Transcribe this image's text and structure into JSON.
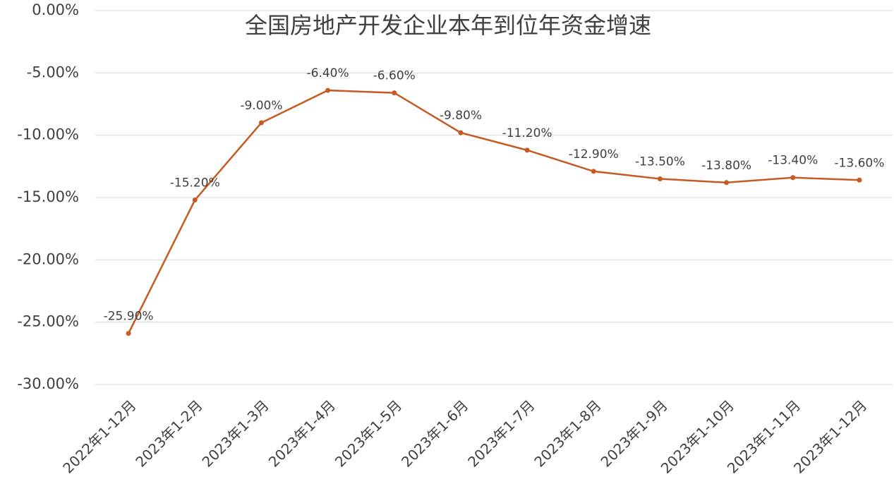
{
  "chart_data": {
    "type": "line",
    "title": "全国房地产开发企业本年到位年资金增速",
    "categories": [
      "2022年1-12月",
      "2023年1-2月",
      "2023年1-3月",
      "2023年1-4月",
      "2023年1-5月",
      "2023年1-6月",
      "2023年1-7月",
      "2023年1-8月",
      "2023年1-9月",
      "2023年1-10月",
      "2023年1-11月",
      "2023年1-12月"
    ],
    "values": [
      -25.9,
      -15.2,
      -9.0,
      -6.4,
      -6.6,
      -9.8,
      -11.2,
      -12.9,
      -13.5,
      -13.8,
      -13.4,
      -13.6
    ],
    "value_labels": [
      "-25.90%",
      "-15.20%",
      "-9.00%",
      "-6.40%",
      "-6.60%",
      "-9.80%",
      "-11.20%",
      "-12.90%",
      "-13.50%",
      "-13.80%",
      "-13.40%",
      "-13.60%"
    ],
    "color": "#c55a22",
    "ylim": [
      -30,
      0
    ],
    "yticks": [
      {
        "value": 0,
        "label": "0.00%"
      },
      {
        "value": -5,
        "label": "-5.00%"
      },
      {
        "value": -10,
        "label": "-10.00%"
      },
      {
        "value": -15,
        "label": "-15.00%"
      },
      {
        "value": -20,
        "label": "-20.00%"
      },
      {
        "value": -25,
        "label": "-25.00%"
      },
      {
        "value": -30,
        "label": "-30.00%"
      }
    ],
    "grid": true
  }
}
